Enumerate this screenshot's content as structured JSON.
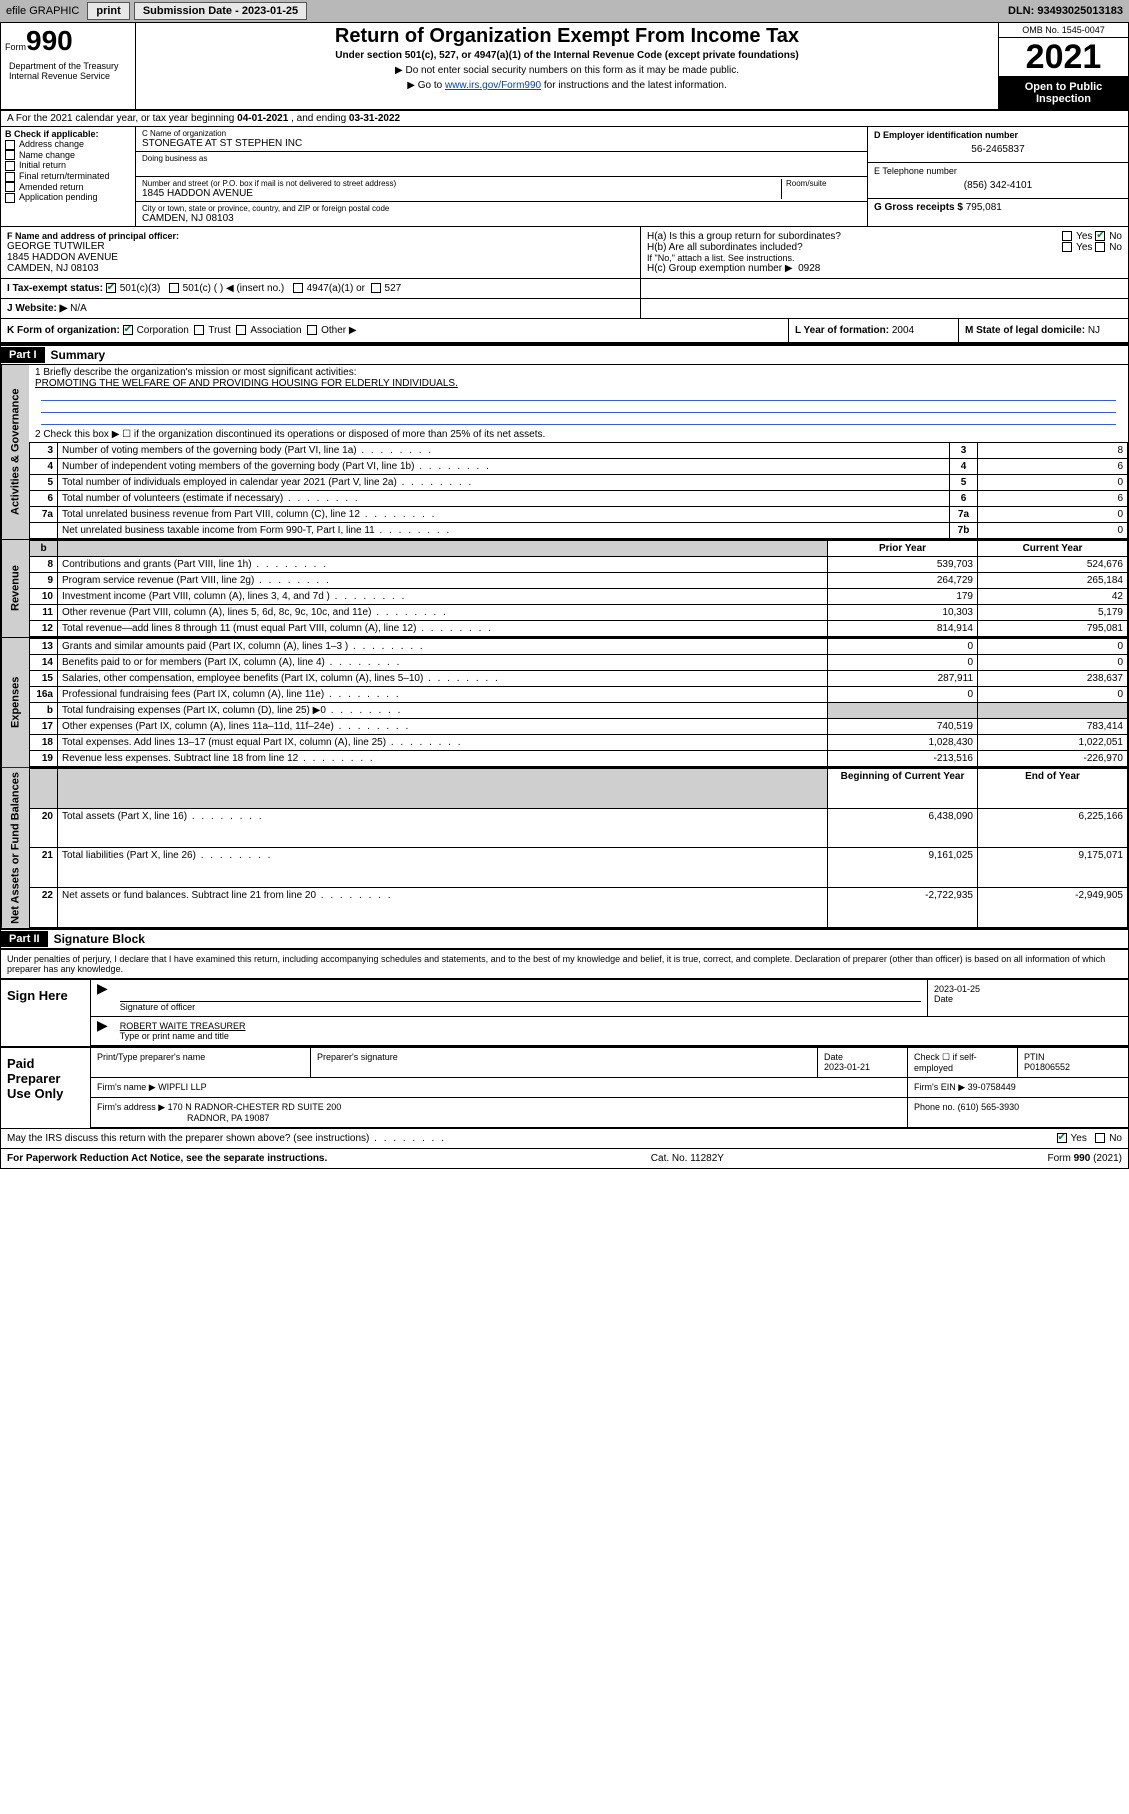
{
  "topbar": {
    "efile": "efile GRAPHIC",
    "print": "print",
    "subdate_lbl": "Submission Date - 2023-01-25",
    "dln": "DLN: 93493025013183"
  },
  "header": {
    "form_word": "Form",
    "form_no": "990",
    "dept": "Department of the Treasury Internal Revenue Service",
    "title": "Return of Organization Exempt From Income Tax",
    "sub": "Under section 501(c), 527, or 4947(a)(1) of the Internal Revenue Code (except private foundations)",
    "line1": "▶ Do not enter social security numbers on this form as it may be made public.",
    "line2_pre": "▶ Go to ",
    "line2_link": "www.irs.gov/Form990",
    "line2_post": " for instructions and the latest information.",
    "omb": "OMB No. 1545-0047",
    "year": "2021",
    "inspection": "Open to Public Inspection"
  },
  "a": {
    "text_pre": "A For the 2021 calendar year, or tax year beginning ",
    "begin": "04-01-2021",
    "mid": " , and ending ",
    "end": "03-31-2022"
  },
  "b": {
    "hdr": "B Check if applicable:",
    "opts": [
      "Address change",
      "Name change",
      "Initial return",
      "Final return/terminated",
      "Amended return",
      "Application pending"
    ]
  },
  "c": {
    "name_lbl": "C Name of organization",
    "name": "STONEGATE AT ST STEPHEN INC",
    "dba_lbl": "Doing business as",
    "addr_lbl": "Number and street (or P.O. box if mail is not delivered to street address)",
    "room_lbl": "Room/suite",
    "addr": "1845 HADDON AVENUE",
    "city_lbl": "City or town, state or province, country, and ZIP or foreign postal code",
    "city": "CAMDEN, NJ  08103"
  },
  "d": {
    "lbl": "D Employer identification number",
    "val": "56-2465837"
  },
  "e": {
    "lbl": "E Telephone number",
    "val": "(856) 342-4101"
  },
  "g": {
    "lbl": "G Gross receipts $",
    "val": "795,081"
  },
  "f": {
    "lbl": "F Name and address of principal officer:",
    "name": "GEORGE TUTWILER",
    "addr1": "1845 HADDON AVENUE",
    "addr2": "CAMDEN, NJ  08103"
  },
  "h": {
    "a": "H(a)  Is this a group return for subordinates?",
    "a_yes": "Yes",
    "a_no": "No",
    "b": "H(b)  Are all subordinates included?",
    "b_yes": "Yes",
    "b_no": "No",
    "b_note": "If \"No,\" attach a list. See instructions.",
    "c": "H(c)  Group exemption number ▶",
    "c_val": "0928"
  },
  "i": {
    "lbl": "I   Tax-exempt status:",
    "o1": "501(c)(3)",
    "o2": "501(c) (   ) ◀ (insert no.)",
    "o3": "4947(a)(1) or",
    "o4": "527"
  },
  "j": {
    "lbl": "J   Website: ▶",
    "val": "N/A"
  },
  "k": {
    "lbl": "K Form of organization:",
    "o1": "Corporation",
    "o2": "Trust",
    "o3": "Association",
    "o4": "Other ▶"
  },
  "l": {
    "lbl": "L Year of formation:",
    "val": "2004"
  },
  "m": {
    "lbl": "M State of legal domicile:",
    "val": "NJ"
  },
  "part1": {
    "hdr": "Part I",
    "title": "Summary"
  },
  "summary": {
    "q1_lbl": "1  Briefly describe the organization's mission or most significant activities:",
    "q1_val": "PROMOTING THE WELFARE OF AND PROVIDING HOUSING FOR ELDERLY INDIVIDUALS.",
    "q2": "2   Check this box ▶ ☐  if the organization discontinued its operations or disposed of more than 25% of its net assets.",
    "rows_gov": [
      {
        "n": "3",
        "t": "Number of voting members of the governing body (Part VI, line 1a)",
        "box": "3",
        "v": "8"
      },
      {
        "n": "4",
        "t": "Number of independent voting members of the governing body (Part VI, line 1b)",
        "box": "4",
        "v": "6"
      },
      {
        "n": "5",
        "t": "Total number of individuals employed in calendar year 2021 (Part V, line 2a)",
        "box": "5",
        "v": "0"
      },
      {
        "n": "6",
        "t": "Total number of volunteers (estimate if necessary)",
        "box": "6",
        "v": "6"
      },
      {
        "n": "7a",
        "t": "Total unrelated business revenue from Part VIII, column (C), line 12",
        "box": "7a",
        "v": "0"
      },
      {
        "n": "",
        "t": "Net unrelated business taxable income from Form 990-T, Part I, line 11",
        "box": "7b",
        "v": "0"
      }
    ],
    "col_prior": "Prior Year",
    "col_curr": "Current Year",
    "rows_rev": [
      {
        "n": "8",
        "t": "Contributions and grants (Part VIII, line 1h)",
        "p": "539,703",
        "c": "524,676"
      },
      {
        "n": "9",
        "t": "Program service revenue (Part VIII, line 2g)",
        "p": "264,729",
        "c": "265,184"
      },
      {
        "n": "10",
        "t": "Investment income (Part VIII, column (A), lines 3, 4, and 7d )",
        "p": "179",
        "c": "42"
      },
      {
        "n": "11",
        "t": "Other revenue (Part VIII, column (A), lines 5, 6d, 8c, 9c, 10c, and 11e)",
        "p": "10,303",
        "c": "5,179"
      },
      {
        "n": "12",
        "t": "Total revenue—add lines 8 through 11 (must equal Part VIII, column (A), line 12)",
        "p": "814,914",
        "c": "795,081"
      }
    ],
    "rows_exp": [
      {
        "n": "13",
        "t": "Grants and similar amounts paid (Part IX, column (A), lines 1–3 )",
        "p": "0",
        "c": "0"
      },
      {
        "n": "14",
        "t": "Benefits paid to or for members (Part IX, column (A), line 4)",
        "p": "0",
        "c": "0"
      },
      {
        "n": "15",
        "t": "Salaries, other compensation, employee benefits (Part IX, column (A), lines 5–10)",
        "p": "287,911",
        "c": "238,637"
      },
      {
        "n": "16a",
        "t": "Professional fundraising fees (Part IX, column (A), line 11e)",
        "p": "0",
        "c": "0"
      },
      {
        "n": "b",
        "t": "Total fundraising expenses (Part IX, column (D), line 25) ▶0",
        "p": "",
        "c": "",
        "grey": true
      },
      {
        "n": "17",
        "t": "Other expenses (Part IX, column (A), lines 11a–11d, 11f–24e)",
        "p": "740,519",
        "c": "783,414"
      },
      {
        "n": "18",
        "t": "Total expenses. Add lines 13–17 (must equal Part IX, column (A), line 25)",
        "p": "1,028,430",
        "c": "1,022,051"
      },
      {
        "n": "19",
        "t": "Revenue less expenses. Subtract line 18 from line 12",
        "p": "-213,516",
        "c": "-226,970"
      }
    ],
    "col_begin": "Beginning of Current Year",
    "col_end": "End of Year",
    "rows_net": [
      {
        "n": "20",
        "t": "Total assets (Part X, line 16)",
        "p": "6,438,090",
        "c": "6,225,166"
      },
      {
        "n": "21",
        "t": "Total liabilities (Part X, line 26)",
        "p": "9,161,025",
        "c": "9,175,071"
      },
      {
        "n": "22",
        "t": "Net assets or fund balances. Subtract line 21 from line 20",
        "p": "-2,722,935",
        "c": "-2,949,905"
      }
    ]
  },
  "sides": {
    "gov": "Activities & Governance",
    "rev": "Revenue",
    "exp": "Expenses",
    "net": "Net Assets or Fund Balances"
  },
  "part2": {
    "hdr": "Part II",
    "title": "Signature Block"
  },
  "penalty": "Under penalties of perjury, I declare that I have examined this return, including accompanying schedules and statements, and to the best of my knowledge and belief, it is true, correct, and complete. Declaration of preparer (other than officer) is based on all information of which preparer has any knowledge.",
  "sign": {
    "left": "Sign Here",
    "sig_lbl": "Signature of officer",
    "date_lbl": "Date",
    "date": "2023-01-25",
    "name": "ROBERT WAITE  TREASURER",
    "name_lbl": "Type or print name and title"
  },
  "preparer": {
    "left": "Paid Preparer Use Only",
    "h1": "Print/Type preparer's name",
    "h2": "Preparer's signature",
    "h3": "Date",
    "h3v": "2023-01-21",
    "h4": "Check ☐ if self-employed",
    "h5": "PTIN",
    "h5v": "P01806552",
    "firm_lbl": "Firm's name    ▶",
    "firm": "WIPFLI LLP",
    "ein_lbl": "Firm's EIN ▶",
    "ein": "39-0758449",
    "addr_lbl": "Firm's address ▶",
    "addr1": "170 N RADNOR-CHESTER RD SUITE 200",
    "addr2": "RADNOR, PA  19087",
    "phone_lbl": "Phone no.",
    "phone": "(610) 565-3930"
  },
  "discuss": {
    "q": "May the IRS discuss this return with the preparer shown above? (see instructions)",
    "yes": "Yes",
    "no": "No"
  },
  "footer": {
    "left": "For Paperwork Reduction Act Notice, see the separate instructions.",
    "mid": "Cat. No. 11282Y",
    "right": "Form 990 (2021)"
  }
}
